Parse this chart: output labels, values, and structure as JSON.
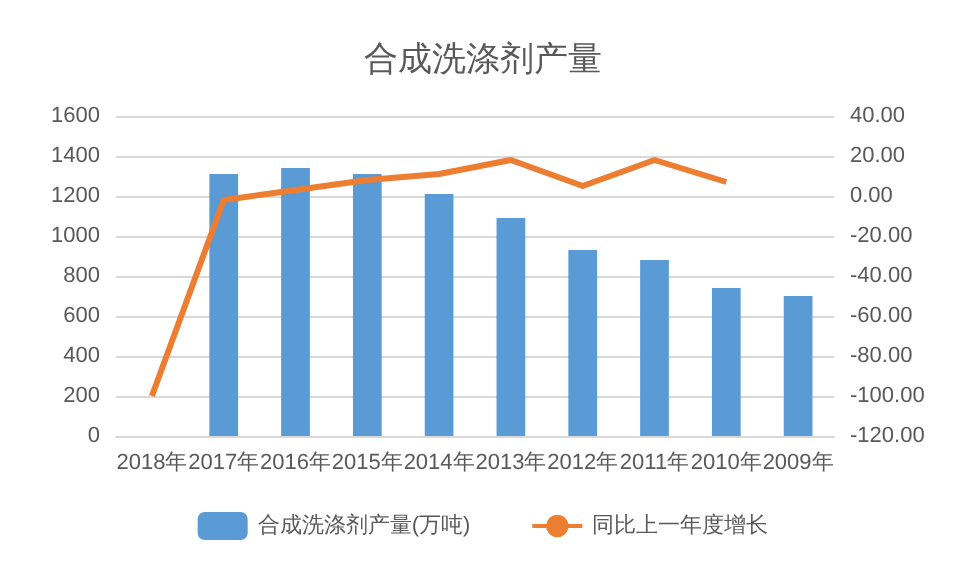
{
  "chart_data": {
    "type": "bar",
    "title": "合成洗涤剂产量",
    "categories": [
      "2018年",
      "2017年",
      "2016年",
      "2015年",
      "2014年",
      "2013年",
      "2012年",
      "2011年",
      "2010年",
      "2009年"
    ],
    "series": [
      {
        "name": "合成洗涤剂产量(万吨)",
        "color": "#5b9bd5",
        "values": [
          null,
          1310,
          1340,
          1310,
          1210,
          1090,
          930,
          880,
          740,
          700
        ]
      },
      {
        "name": "同比上一年度增长",
        "type": "line",
        "axis": "y2",
        "color": "#ed7d31",
        "values": [
          -100,
          -2,
          3,
          8,
          11,
          18,
          5,
          18,
          7,
          null
        ]
      }
    ],
    "ylim": [
      0,
      1600
    ],
    "yticks": [
      0,
      200,
      400,
      600,
      800,
      1000,
      1200,
      1400,
      1600
    ],
    "y2lim": [
      -120,
      40
    ],
    "y2ticks": [
      {
        "value": -120,
        "label": "-120.00"
      },
      {
        "value": -100,
        "label": "-100.00"
      },
      {
        "value": -80,
        "label": "-80.00"
      },
      {
        "value": -60,
        "label": "-60.00"
      },
      {
        "value": -40,
        "label": "-40.00"
      },
      {
        "value": -20,
        "label": "-20.00"
      },
      {
        "value": 0,
        "label": "0.00"
      },
      {
        "value": 20,
        "label": "20.00"
      },
      {
        "value": 40,
        "label": "40.00"
      }
    ],
    "grid": "y",
    "legend": "bottom",
    "marker": "none"
  }
}
